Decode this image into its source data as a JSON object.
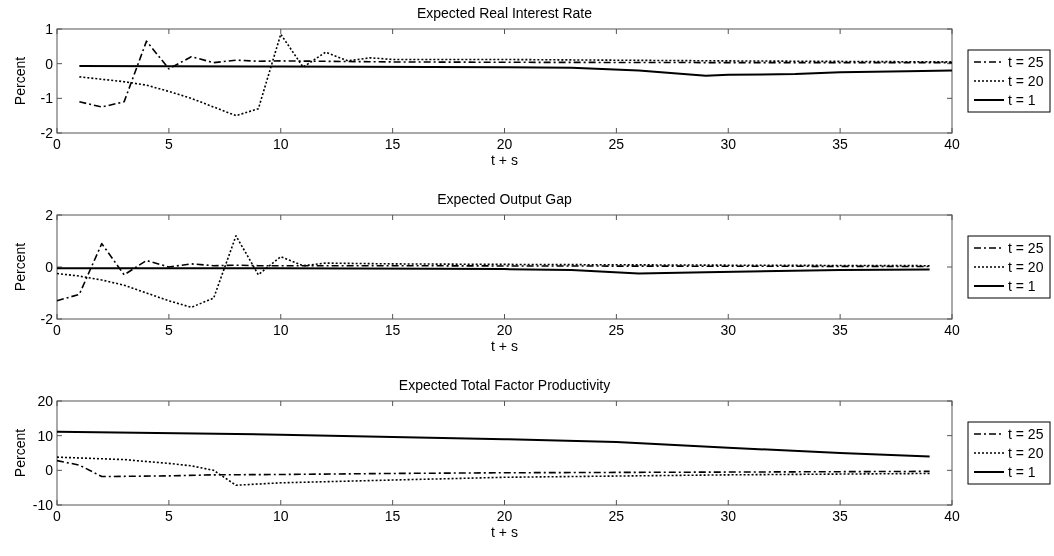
{
  "chart_data": [
    {
      "type": "line",
      "title": "Expected Real Interest Rate",
      "xlabel": "t + s",
      "ylabel": "Percent",
      "xlim": [
        0,
        40
      ],
      "xticks": [
        0,
        5,
        10,
        15,
        20,
        25,
        30,
        35,
        40
      ],
      "ylim": [
        -2,
        1
      ],
      "yticks": [
        -2,
        -1,
        0,
        1
      ],
      "legend": "right",
      "grid": false,
      "series": [
        {
          "name": "t = 25",
          "color": "#000000",
          "line_style": "dashed",
          "x": [
            1,
            2,
            3,
            4,
            5,
            6,
            7,
            8,
            9,
            10,
            15,
            20,
            30,
            40
          ],
          "values": [
            -1.1,
            -1.25,
            -1.1,
            0.65,
            -0.15,
            0.2,
            0.03,
            0.1,
            0.07,
            0.08,
            0.05,
            0.04,
            0.03,
            0.03
          ]
        },
        {
          "name": "t = 20",
          "color": "#000000",
          "line_style": "dotted",
          "x": [
            1,
            2,
            3,
            4,
            5,
            6,
            7,
            8,
            9,
            10,
            11,
            12,
            13,
            14,
            15,
            20,
            30,
            40
          ],
          "values": [
            -0.38,
            -0.45,
            -0.52,
            -0.62,
            -0.8,
            -1.0,
            -1.25,
            -1.5,
            -1.3,
            0.85,
            -0.1,
            0.33,
            0.08,
            0.17,
            0.12,
            0.12,
            0.08,
            0.05
          ]
        },
        {
          "name": "t = 1",
          "color": "#000000",
          "line_style": "solid",
          "x": [
            1,
            10,
            20,
            23,
            26,
            29,
            30,
            33,
            35,
            38,
            40
          ],
          "values": [
            -0.07,
            -0.08,
            -0.1,
            -0.12,
            -0.2,
            -0.35,
            -0.32,
            -0.3,
            -0.25,
            -0.22,
            -0.2
          ]
        }
      ]
    },
    {
      "type": "line",
      "title": "Expected Output Gap",
      "xlabel": "t + s",
      "ylabel": "Percent",
      "xlim": [
        0,
        40
      ],
      "xticks": [
        0,
        5,
        10,
        15,
        20,
        25,
        30,
        35,
        40
      ],
      "ylim": [
        -2,
        2
      ],
      "yticks": [
        -2,
        0,
        2
      ],
      "legend": "right",
      "grid": false,
      "series": [
        {
          "name": "t = 25",
          "color": "#000000",
          "line_style": "dashed",
          "x": [
            0,
            1,
            2,
            3,
            4,
            5,
            6,
            7,
            8,
            9,
            10,
            15,
            20,
            30,
            39
          ],
          "values": [
            -1.3,
            -1.05,
            0.9,
            -0.3,
            0.25,
            0,
            0.12,
            0.05,
            0.07,
            0.05,
            0.05,
            0.05,
            0.04,
            0.03,
            0.02
          ]
        },
        {
          "name": "t = 20",
          "color": "#000000",
          "line_style": "dotted",
          "x": [
            0,
            1,
            2,
            3,
            4,
            5,
            6,
            7,
            8,
            9,
            10,
            11,
            12,
            15,
            20,
            30,
            39
          ],
          "values": [
            -0.25,
            -0.35,
            -0.5,
            -0.7,
            -1.0,
            -1.3,
            -1.55,
            -1.2,
            1.2,
            -0.3,
            0.4,
            0.05,
            0.15,
            0.12,
            0.1,
            0.07,
            0.05
          ]
        },
        {
          "name": "t = 1",
          "color": "#000000",
          "line_style": "solid",
          "x": [
            0,
            10,
            20,
            23,
            26,
            29,
            35,
            39
          ],
          "values": [
            -0.05,
            -0.05,
            -0.08,
            -0.12,
            -0.25,
            -0.2,
            -0.12,
            -0.1
          ]
        }
      ]
    },
    {
      "type": "line",
      "title": "Expected Total Factor Productivity",
      "xlabel": "t + s",
      "ylabel": "Percent",
      "xlim": [
        0,
        40
      ],
      "xticks": [
        0,
        5,
        10,
        15,
        20,
        25,
        30,
        35,
        40
      ],
      "ylim": [
        -10,
        20
      ],
      "yticks": [
        -10,
        0,
        10,
        20
      ],
      "legend": "right",
      "grid": false,
      "series": [
        {
          "name": "t = 25",
          "color": "#000000",
          "line_style": "dashed",
          "x": [
            0,
            1,
            2,
            5,
            7,
            10,
            15,
            20,
            30,
            39
          ],
          "values": [
            2.8,
            1.5,
            -1.8,
            -1.6,
            -1.3,
            -1.2,
            -0.9,
            -0.7,
            -0.5,
            -0.3
          ]
        },
        {
          "name": "t = 20",
          "color": "#000000",
          "line_style": "dotted",
          "x": [
            0,
            3,
            5,
            6,
            7,
            8,
            10,
            15,
            20,
            30,
            39
          ],
          "values": [
            3.8,
            3.1,
            2.0,
            1.3,
            0,
            -4.3,
            -3.6,
            -2.8,
            -2.0,
            -1.3,
            -0.9
          ]
        },
        {
          "name": "t = 1",
          "color": "#000000",
          "line_style": "solid",
          "x": [
            0,
            10,
            20,
            25,
            30,
            35,
            39
          ],
          "values": [
            11.1,
            10.3,
            9.0,
            8.2,
            6.5,
            5.0,
            4.0
          ]
        }
      ]
    }
  ]
}
